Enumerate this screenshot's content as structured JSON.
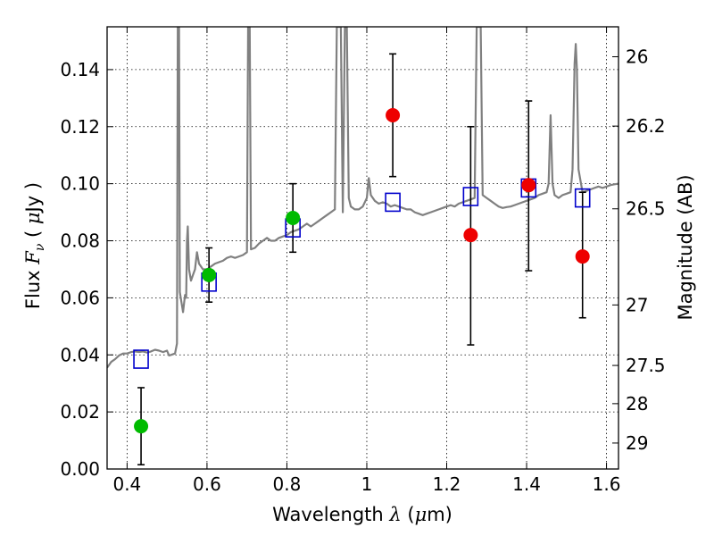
{
  "chart_data": {
    "type": "scatter",
    "title": "",
    "xlabel": {
      "prefix": "Wavelength ",
      "symbol": "λ",
      "unit_open": " (",
      "unit_mu": "μ",
      "unit_close": "m)"
    },
    "ylabel": {
      "prefix": "Flux ",
      "symbol": "F",
      "sub": "ν",
      "unit_open": " ( ",
      "unit_mu": "μ",
      "unit_close": "Jy )"
    },
    "y2label": "Magnitude (AB)",
    "xlim": [
      0.35,
      1.63
    ],
    "ylim": [
      0.0,
      0.155
    ],
    "grid": true,
    "x_ticks": [
      {
        "value": 0.4,
        "label": "0.4"
      },
      {
        "value": 0.6,
        "label": "0.6"
      },
      {
        "value": 0.8,
        "label": "0.8"
      },
      {
        "value": 1.0,
        "label": "1"
      },
      {
        "value": 1.2,
        "label": "1.2"
      },
      {
        "value": 1.4,
        "label": "1.4"
      },
      {
        "value": 1.6,
        "label": "1.6"
      }
    ],
    "y_ticks": [
      {
        "value": 0.0,
        "label": "0.00"
      },
      {
        "value": 0.02,
        "label": "0.02"
      },
      {
        "value": 0.04,
        "label": "0.04"
      },
      {
        "value": 0.06,
        "label": "0.06"
      },
      {
        "value": 0.08,
        "label": "0.08"
      },
      {
        "value": 0.1,
        "label": "0.10"
      },
      {
        "value": 0.12,
        "label": "0.12"
      },
      {
        "value": 0.14,
        "label": "0.14"
      }
    ],
    "y2_ticks": [
      {
        "label": "26",
        "flux": 0.1445
      },
      {
        "label": "26.2",
        "flux": 0.1202
      },
      {
        "label": "26.5",
        "flux": 0.0912
      },
      {
        "label": "27",
        "flux": 0.0575
      },
      {
        "label": "27.5",
        "flux": 0.0363
      },
      {
        "label": "28",
        "flux": 0.0229
      },
      {
        "label": "29",
        "flux": 0.0091
      }
    ],
    "series": [
      {
        "kind": "model_spectrum",
        "color": "#808080",
        "points": [
          [
            0.35,
            0.0355
          ],
          [
            0.36,
            0.0375
          ],
          [
            0.37,
            0.0385
          ],
          [
            0.38,
            0.0398
          ],
          [
            0.39,
            0.0405
          ],
          [
            0.4,
            0.0405
          ],
          [
            0.41,
            0.041
          ],
          [
            0.42,
            0.0412
          ],
          [
            0.43,
            0.041
          ],
          [
            0.44,
            0.0412
          ],
          [
            0.45,
            0.0408
          ],
          [
            0.46,
            0.0412
          ],
          [
            0.47,
            0.0418
          ],
          [
            0.48,
            0.0415
          ],
          [
            0.49,
            0.041
          ],
          [
            0.5,
            0.0415
          ],
          [
            0.505,
            0.0398
          ],
          [
            0.51,
            0.04
          ],
          [
            0.52,
            0.0405
          ],
          [
            0.525,
            0.044
          ],
          [
            0.527,
            0.155
          ],
          [
            0.53,
            0.155
          ],
          [
            0.532,
            0.062
          ],
          [
            0.54,
            0.055
          ],
          [
            0.545,
            0.061
          ],
          [
            0.548,
            0.06
          ],
          [
            0.55,
            0.08
          ],
          [
            0.552,
            0.085
          ],
          [
            0.555,
            0.07
          ],
          [
            0.56,
            0.066
          ],
          [
            0.565,
            0.068
          ],
          [
            0.57,
            0.07
          ],
          [
            0.575,
            0.076
          ],
          [
            0.58,
            0.072
          ],
          [
            0.59,
            0.07
          ],
          [
            0.6,
            0.07
          ],
          [
            0.61,
            0.071
          ],
          [
            0.62,
            0.072
          ],
          [
            0.63,
            0.0725
          ],
          [
            0.64,
            0.073
          ],
          [
            0.65,
            0.074
          ],
          [
            0.66,
            0.0745
          ],
          [
            0.67,
            0.074
          ],
          [
            0.68,
            0.0745
          ],
          [
            0.69,
            0.075
          ],
          [
            0.7,
            0.076
          ],
          [
            0.703,
            0.155
          ],
          [
            0.707,
            0.155
          ],
          [
            0.71,
            0.077
          ],
          [
            0.72,
            0.0775
          ],
          [
            0.73,
            0.079
          ],
          [
            0.74,
            0.08
          ],
          [
            0.75,
            0.081
          ],
          [
            0.76,
            0.08
          ],
          [
            0.77,
            0.08
          ],
          [
            0.78,
            0.081
          ],
          [
            0.79,
            0.0815
          ],
          [
            0.8,
            0.082
          ],
          [
            0.81,
            0.083
          ],
          [
            0.82,
            0.0835
          ],
          [
            0.83,
            0.084
          ],
          [
            0.84,
            0.085
          ],
          [
            0.85,
            0.086
          ],
          [
            0.86,
            0.085
          ],
          [
            0.87,
            0.086
          ],
          [
            0.88,
            0.087
          ],
          [
            0.89,
            0.088
          ],
          [
            0.9,
            0.089
          ],
          [
            0.91,
            0.09
          ],
          [
            0.92,
            0.091
          ],
          [
            0.925,
            0.155
          ],
          [
            0.935,
            0.155
          ],
          [
            0.94,
            0.09
          ],
          [
            0.945,
            0.155
          ],
          [
            0.95,
            0.155
          ],
          [
            0.955,
            0.095
          ],
          [
            0.96,
            0.092
          ],
          [
            0.97,
            0.091
          ],
          [
            0.98,
            0.091
          ],
          [
            0.99,
            0.092
          ],
          [
            1.0,
            0.095
          ],
          [
            1.005,
            0.102
          ],
          [
            1.01,
            0.096
          ],
          [
            1.02,
            0.094
          ],
          [
            1.03,
            0.093
          ],
          [
            1.04,
            0.0935
          ],
          [
            1.05,
            0.093
          ],
          [
            1.06,
            0.092
          ],
          [
            1.07,
            0.0925
          ],
          [
            1.08,
            0.092
          ],
          [
            1.09,
            0.0915
          ],
          [
            1.1,
            0.091
          ],
          [
            1.11,
            0.091
          ],
          [
            1.12,
            0.09
          ],
          [
            1.13,
            0.0895
          ],
          [
            1.14,
            0.089
          ],
          [
            1.15,
            0.0895
          ],
          [
            1.16,
            0.09
          ],
          [
            1.17,
            0.0905
          ],
          [
            1.18,
            0.091
          ],
          [
            1.19,
            0.0915
          ],
          [
            1.2,
            0.092
          ],
          [
            1.21,
            0.0925
          ],
          [
            1.22,
            0.092
          ],
          [
            1.23,
            0.093
          ],
          [
            1.24,
            0.0935
          ],
          [
            1.25,
            0.094
          ],
          [
            1.26,
            0.0945
          ],
          [
            1.27,
            0.095
          ],
          [
            1.275,
            0.155
          ],
          [
            1.285,
            0.155
          ],
          [
            1.29,
            0.096
          ],
          [
            1.3,
            0.095
          ],
          [
            1.31,
            0.094
          ],
          [
            1.32,
            0.093
          ],
          [
            1.33,
            0.092
          ],
          [
            1.34,
            0.0915
          ],
          [
            1.35,
            0.0918
          ],
          [
            1.36,
            0.092
          ],
          [
            1.37,
            0.0925
          ],
          [
            1.38,
            0.093
          ],
          [
            1.39,
            0.0935
          ],
          [
            1.4,
            0.094
          ],
          [
            1.41,
            0.0945
          ],
          [
            1.42,
            0.095
          ],
          [
            1.43,
            0.096
          ],
          [
            1.44,
            0.0965
          ],
          [
            1.45,
            0.097
          ],
          [
            1.455,
            0.1
          ],
          [
            1.46,
            0.124
          ],
          [
            1.465,
            0.1
          ],
          [
            1.47,
            0.096
          ],
          [
            1.48,
            0.095
          ],
          [
            1.49,
            0.096
          ],
          [
            1.5,
            0.0965
          ],
          [
            1.51,
            0.097
          ],
          [
            1.515,
            0.105
          ],
          [
            1.52,
            0.142
          ],
          [
            1.523,
            0.149
          ],
          [
            1.526,
            0.14
          ],
          [
            1.53,
            0.105
          ],
          [
            1.54,
            0.097
          ],
          [
            1.55,
            0.0975
          ],
          [
            1.56,
            0.098
          ],
          [
            1.57,
            0.0985
          ],
          [
            1.58,
            0.099
          ],
          [
            1.59,
            0.0985
          ],
          [
            1.6,
            0.099
          ],
          [
            1.61,
            0.0995
          ],
          [
            1.62,
            0.0998
          ],
          [
            1.63,
            0.1
          ]
        ]
      },
      {
        "kind": "model_photometry",
        "marker": "open-square",
        "color": "#0000cc",
        "points": [
          [
            0.435,
            0.0385
          ],
          [
            0.605,
            0.0655
          ],
          [
            0.815,
            0.0845
          ],
          [
            1.065,
            0.0935
          ],
          [
            1.26,
            0.0955
          ],
          [
            1.405,
            0.0985
          ],
          [
            1.54,
            0.095
          ]
        ]
      },
      {
        "kind": "detections",
        "marker": "filled-circle",
        "color": "#00bb00",
        "points": [
          {
            "x": 0.435,
            "y": 0.015,
            "ylo": 0.0015,
            "yhi": 0.0285
          },
          {
            "x": 0.605,
            "y": 0.068,
            "ylo": 0.0585,
            "yhi": 0.0775
          },
          {
            "x": 0.815,
            "y": 0.088,
            "ylo": 0.076,
            "yhi": 0.1
          }
        ]
      },
      {
        "kind": "detections",
        "marker": "filled-circle",
        "color": "#ee0000",
        "points": [
          {
            "x": 1.065,
            "y": 0.124,
            "ylo": 0.1025,
            "yhi": 0.1455
          },
          {
            "x": 1.26,
            "y": 0.082,
            "ylo": 0.0435,
            "yhi": 0.12
          },
          {
            "x": 1.405,
            "y": 0.0995,
            "ylo": 0.0695,
            "yhi": 0.129
          },
          {
            "x": 1.54,
            "y": 0.0745,
            "ylo": 0.053,
            "yhi": 0.097
          }
        ]
      }
    ]
  }
}
